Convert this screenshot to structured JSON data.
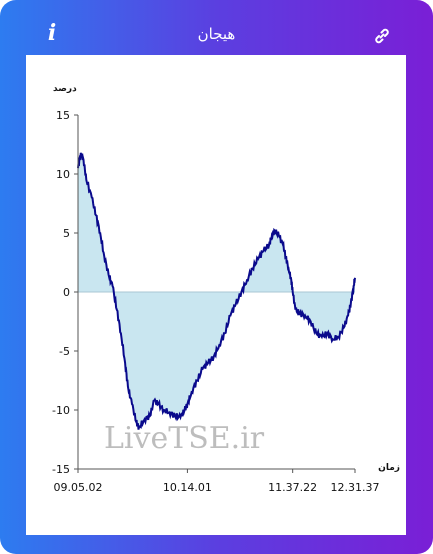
{
  "header": {
    "title": "هیجان",
    "info_icon": "info-icon",
    "share_icon": "link-icon"
  },
  "colors": {
    "gradient_start": "#2d7cf0",
    "gradient_end": "#7a1fd6",
    "line": "#0a0a8c",
    "fill": "#c9e6f0"
  },
  "watermark": "LiveTSE.ir",
  "chart_data": {
    "type": "area",
    "ylabel": "درصد",
    "xlabel": "زمان",
    "ylim": [
      -15,
      15
    ],
    "y_ticks": [
      15,
      10,
      5,
      0,
      -5,
      -10,
      -15
    ],
    "x_ticks": [
      "09.05.02",
      "10.14.01",
      "11.37.22",
      "12.31.37"
    ],
    "x_tick_positions": [
      0,
      0.395,
      0.775,
      1.0
    ],
    "series": [
      {
        "values": [
          [
            0.0,
            10.5
          ],
          [
            0.01,
            11.8
          ],
          [
            0.02,
            11.2
          ],
          [
            0.03,
            9.5
          ],
          [
            0.05,
            8.0
          ],
          [
            0.065,
            6.5
          ],
          [
            0.08,
            5.0
          ],
          [
            0.095,
            3.0
          ],
          [
            0.11,
            1.5
          ],
          [
            0.125,
            0.5
          ],
          [
            0.14,
            -1.5
          ],
          [
            0.155,
            -3.5
          ],
          [
            0.17,
            -6.0
          ],
          [
            0.18,
            -8.0
          ],
          [
            0.195,
            -9.5
          ],
          [
            0.21,
            -11.0
          ],
          [
            0.22,
            -11.5
          ],
          [
            0.24,
            -10.8
          ],
          [
            0.26,
            -10.5
          ],
          [
            0.275,
            -9.2
          ],
          [
            0.29,
            -9.5
          ],
          [
            0.31,
            -10.0
          ],
          [
            0.33,
            -10.2
          ],
          [
            0.35,
            -10.5
          ],
          [
            0.37,
            -10.6
          ],
          [
            0.385,
            -10.0
          ],
          [
            0.395,
            -9.5
          ],
          [
            0.41,
            -8.5
          ],
          [
            0.43,
            -7.5
          ],
          [
            0.45,
            -6.5
          ],
          [
            0.47,
            -6.0
          ],
          [
            0.49,
            -5.5
          ],
          [
            0.51,
            -4.5
          ],
          [
            0.53,
            -3.5
          ],
          [
            0.55,
            -2.0
          ],
          [
            0.57,
            -1.0
          ],
          [
            0.59,
            0.0
          ],
          [
            0.61,
            1.0
          ],
          [
            0.63,
            2.0
          ],
          [
            0.65,
            2.8
          ],
          [
            0.67,
            3.5
          ],
          [
            0.69,
            4.0
          ],
          [
            0.7,
            4.8
          ],
          [
            0.71,
            5.2
          ],
          [
            0.725,
            4.8
          ],
          [
            0.74,
            4.0
          ],
          [
            0.75,
            3.0
          ],
          [
            0.76,
            2.0
          ],
          [
            0.77,
            1.0
          ],
          [
            0.775,
            0.0
          ],
          [
            0.785,
            -1.5
          ],
          [
            0.8,
            -1.8
          ],
          [
            0.82,
            -2.0
          ],
          [
            0.84,
            -2.5
          ],
          [
            0.86,
            -3.5
          ],
          [
            0.88,
            -3.8
          ],
          [
            0.9,
            -3.5
          ],
          [
            0.92,
            -4.0
          ],
          [
            0.94,
            -3.8
          ],
          [
            0.96,
            -3.0
          ],
          [
            0.975,
            -2.0
          ],
          [
            0.985,
            -1.0
          ],
          [
            0.995,
            0.5
          ],
          [
            1.0,
            1.2
          ]
        ]
      }
    ]
  }
}
